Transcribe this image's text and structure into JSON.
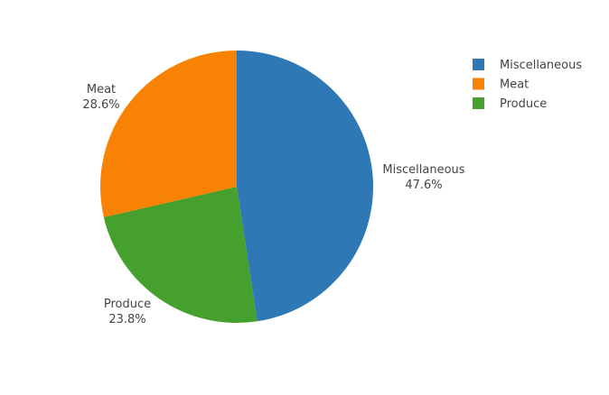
{
  "chart_data": {
    "type": "pie",
    "title": "",
    "slices": [
      {
        "label": "Miscellaneous",
        "value": 47.6,
        "percent_text": "47.6%",
        "color": "#2e78b6"
      },
      {
        "label": "Produce",
        "value": 23.8,
        "percent_text": "23.8%",
        "color": "#46a02d"
      },
      {
        "label": "Meat",
        "value": 28.6,
        "percent_text": "28.6%",
        "color": "#f88203"
      }
    ],
    "legend": {
      "placement": "top-right",
      "entries": [
        {
          "label": "Miscellaneous",
          "color": "#2e78b6"
        },
        {
          "label": "Meat",
          "color": "#f88203"
        },
        {
          "label": "Produce",
          "color": "#46a02d"
        }
      ]
    },
    "direction": "clockwise",
    "start": "top"
  }
}
